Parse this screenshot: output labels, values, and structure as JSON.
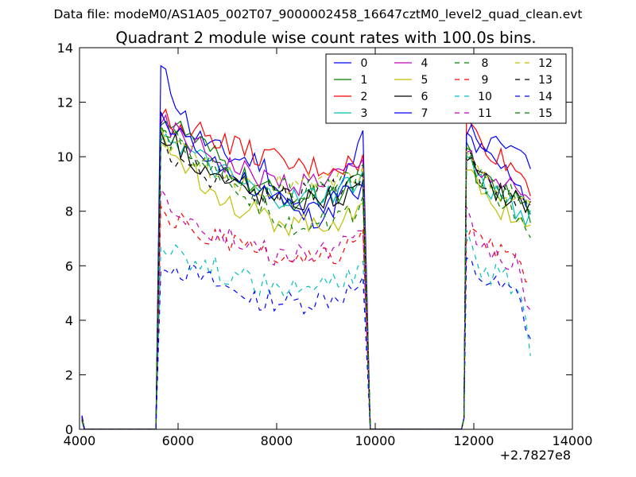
{
  "suptitle": "Data file: modeM0/AS1A05_002T07_9000002458_16647cztM0_level2_quad_clean.evt",
  "chart_data": {
    "type": "line",
    "title": "Quadrant 2 module wise count rates with 100.0s bins.",
    "xlabel": "",
    "ylabel": "",
    "x_offset_label": "+2.7827e8",
    "xlim": [
      4000,
      14000
    ],
    "ylim": [
      0,
      14
    ],
    "xticks": [
      "4000",
      "6000",
      "8000",
      "10000",
      "12000",
      "14000"
    ],
    "yticks": [
      "0",
      "2",
      "4",
      "6",
      "8",
      "10",
      "12",
      "14"
    ],
    "legend_position": "upper-right",
    "legend_columns": 4,
    "segments": [
      {
        "start": 5650,
        "end": 9750
      },
      {
        "start": 11850,
        "end": 13150
      }
    ],
    "series": [
      {
        "name": "0",
        "color": "#0000ff",
        "style": "solid",
        "seg1": [
          13.2,
          10.8,
          10.0,
          9.8,
          7.8,
          7.8,
          10.7
        ],
        "seg2": [
          10.8,
          10.2,
          9.8,
          9.5,
          9.2,
          8.0
        ]
      },
      {
        "name": "1",
        "color": "#008000",
        "style": "solid",
        "seg1": [
          11.5,
          10.6,
          9.6,
          8.8,
          8.4,
          8.6,
          9.0
        ],
        "seg2": [
          10.5,
          9.2,
          8.8,
          8.6,
          8.4,
          7.8
        ]
      },
      {
        "name": "2",
        "color": "#ff0000",
        "style": "solid",
        "seg1": [
          11.4,
          11.0,
          10.5,
          10.0,
          9.6,
          9.6,
          9.8
        ],
        "seg2": [
          11.3,
          10.6,
          10.2,
          9.8,
          9.5,
          8.9
        ]
      },
      {
        "name": "3",
        "color": "#00bfbf",
        "style": "solid",
        "seg1": [
          11.0,
          10.0,
          9.2,
          8.6,
          8.4,
          8.6,
          9.2
        ],
        "seg2": [
          10.1,
          9.1,
          8.7,
          8.4,
          8.1,
          7.6
        ]
      },
      {
        "name": "4",
        "color": "#bf00bf",
        "style": "solid",
        "seg1": [
          11.2,
          10.4,
          9.7,
          9.2,
          9.0,
          9.2,
          9.6
        ],
        "seg2": [
          10.3,
          9.6,
          9.2,
          8.9,
          8.7,
          8.1
        ]
      },
      {
        "name": "5",
        "color": "#bfbf00",
        "style": "solid",
        "seg1": [
          10.7,
          9.4,
          8.4,
          7.8,
          7.5,
          7.6,
          8.0
        ],
        "seg2": [
          9.7,
          8.7,
          8.3,
          8.0,
          7.8,
          7.3
        ]
      },
      {
        "name": "6",
        "color": "#000000",
        "style": "solid",
        "seg1": [
          11.0,
          9.9,
          9.0,
          8.6,
          8.4,
          8.5,
          8.6
        ],
        "seg2": [
          10.1,
          9.2,
          8.9,
          8.6,
          8.4,
          8.3
        ]
      },
      {
        "name": "7",
        "color": "#0000ff",
        "style": "solid",
        "seg1": [
          11.3,
          10.6,
          9.4,
          8.6,
          8.1,
          8.4,
          8.8
        ],
        "seg2": [
          11.1,
          10.7,
          10.5,
          10.5,
          10.3,
          9.6
        ]
      },
      {
        "name": "8",
        "color": "#008000",
        "style": "dashed",
        "seg1": [
          11.3,
          10.2,
          9.2,
          8.2,
          7.5,
          7.6,
          8.2
        ],
        "seg2": [
          10.2,
          9.2,
          8.6,
          8.2,
          7.9,
          7.2
        ]
      },
      {
        "name": "9",
        "color": "#ff0000",
        "style": "dashed",
        "seg1": [
          7.9,
          7.3,
          6.8,
          6.4,
          6.1,
          6.3,
          7.0
        ],
        "seg2": [
          7.3,
          6.9,
          6.6,
          6.3,
          6.1,
          5.7
        ]
      },
      {
        "name": "10",
        "color": "#00bfbf",
        "style": "dashed",
        "seg1": [
          6.9,
          6.2,
          5.7,
          5.3,
          5.1,
          5.3,
          5.8
        ],
        "seg2": [
          6.9,
          6.0,
          5.7,
          5.5,
          5.3,
          3.1
        ]
      },
      {
        "name": "11",
        "color": "#bf00bf",
        "style": "dashed",
        "seg1": [
          8.6,
          7.6,
          7.0,
          6.5,
          6.3,
          6.6,
          6.9
        ],
        "seg2": [
          7.8,
          6.8,
          6.5,
          6.2,
          6.0,
          4.0
        ]
      },
      {
        "name": "12",
        "color": "#bfbf00",
        "style": "dashed",
        "seg1": [
          10.8,
          9.9,
          9.3,
          9.0,
          8.9,
          9.1,
          9.3
        ],
        "seg2": [
          9.9,
          9.2,
          8.9,
          8.6,
          8.4,
          8.0
        ]
      },
      {
        "name": "13",
        "color": "#000000",
        "style": "dashed",
        "seg1": [
          10.4,
          9.6,
          9.0,
          8.7,
          8.6,
          8.8,
          9.0
        ],
        "seg2": [
          10.1,
          9.3,
          9.0,
          8.7,
          8.5,
          8.1
        ]
      },
      {
        "name": "14",
        "color": "#0000ff",
        "style": "dashed",
        "seg1": [
          6.2,
          5.6,
          5.1,
          4.8,
          4.6,
          4.8,
          5.2
        ],
        "seg2": [
          6.1,
          5.6,
          5.3,
          5.1,
          4.9,
          3.3
        ]
      },
      {
        "name": "15",
        "color": "#008000",
        "style": "dashed",
        "seg1": [
          10.9,
          10.0,
          9.3,
          8.9,
          8.7,
          8.9,
          9.3
        ],
        "seg2": [
          10.2,
          9.4,
          9.0,
          8.7,
          8.5,
          7.9
        ]
      }
    ]
  }
}
